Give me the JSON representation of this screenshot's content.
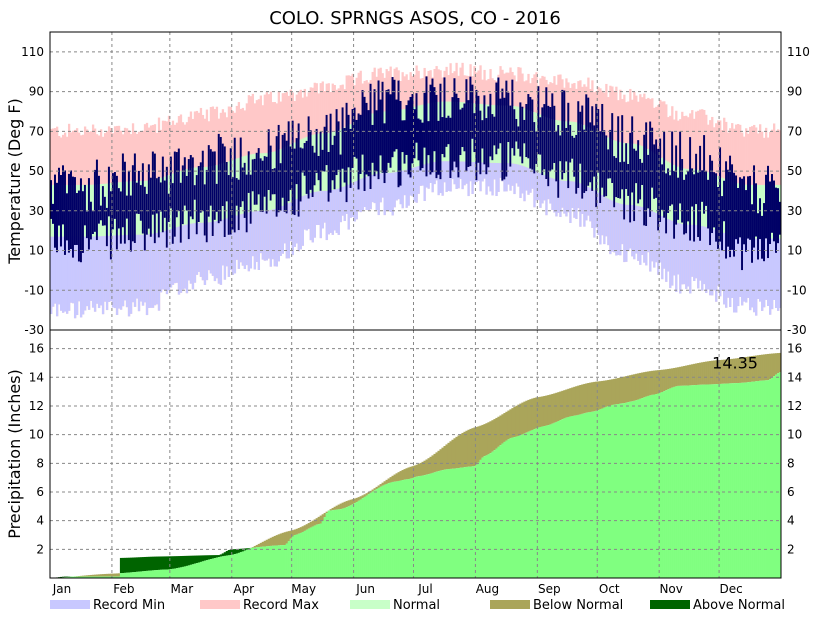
{
  "chart_data": {
    "title": "COLO. SPRNGS ASOS, CO - 2016",
    "months": [
      "Jan",
      "Feb",
      "Mar",
      "Apr",
      "May",
      "Jun",
      "Jul",
      "Aug",
      "Sep",
      "Oct",
      "Nov",
      "Dec"
    ],
    "temperature_panel": {
      "type": "bar",
      "ylabel": "Temperature (Deg F)",
      "ylim": [
        -30,
        120
      ],
      "yticks": [
        -30,
        -10,
        10,
        30,
        50,
        70,
        90,
        110
      ],
      "grid": true,
      "record_max_monthly": [
        70,
        72,
        78,
        86,
        92,
        99,
        101,
        99,
        95,
        88,
        78,
        70
      ],
      "record_min_monthly": [
        -20,
        -18,
        -5,
        5,
        20,
        32,
        42,
        42,
        28,
        8,
        -8,
        -18
      ],
      "normal_high_monthly": [
        43,
        45,
        52,
        59,
        69,
        80,
        85,
        83,
        75,
        64,
        51,
        43
      ],
      "normal_low_monthly": [
        17,
        18,
        24,
        30,
        40,
        49,
        55,
        54,
        45,
        33,
        23,
        16
      ],
      "observed_high_monthly": [
        42,
        48,
        55,
        60,
        68,
        85,
        88,
        84,
        80,
        66,
        58,
        40
      ],
      "observed_low_monthly": [
        15,
        18,
        25,
        30,
        42,
        52,
        57,
        55,
        47,
        35,
        25,
        10
      ]
    },
    "precipitation_panel": {
      "type": "area",
      "ylabel": "Precipitation (Inches)",
      "ylim": [
        0,
        17.3
      ],
      "yticks": [
        2,
        4,
        6,
        8,
        10,
        12,
        14,
        16
      ],
      "grid": true,
      "annotation": "14.35",
      "observed_cumulative": [
        [
          1,
          0
        ],
        [
          8,
          0.1
        ],
        [
          35,
          0.1
        ],
        [
          36,
          1.4
        ],
        [
          55,
          1.5
        ],
        [
          85,
          1.6
        ],
        [
          91,
          2.0
        ],
        [
          118,
          2.3
        ],
        [
          123,
          3.0
        ],
        [
          136,
          3.8
        ],
        [
          140,
          4.7
        ],
        [
          146,
          4.8
        ],
        [
          172,
          6.7
        ],
        [
          180,
          6.9
        ],
        [
          185,
          7.1
        ],
        [
          200,
          7.6
        ],
        [
          213,
          7.8
        ],
        [
          218,
          8.5
        ],
        [
          232,
          9.8
        ],
        [
          248,
          10.6
        ],
        [
          262,
          11.3
        ],
        [
          272,
          11.6
        ],
        [
          283,
          12.1
        ],
        [
          288,
          12.2
        ],
        [
          291,
          12.3
        ],
        [
          303,
          12.8
        ],
        [
          315,
          13.4
        ],
        [
          330,
          13.5
        ],
        [
          345,
          13.6
        ],
        [
          360,
          13.8
        ],
        [
          366,
          14.35
        ]
      ],
      "normal_cumulative": [
        [
          1,
          0
        ],
        [
          31,
          0.3
        ],
        [
          60,
          0.6
        ],
        [
          91,
          1.6
        ],
        [
          121,
          3.3
        ],
        [
          152,
          5.5
        ],
        [
          182,
          7.8
        ],
        [
          213,
          10.5
        ],
        [
          244,
          12.6
        ],
        [
          274,
          13.7
        ],
        [
          305,
          14.5
        ],
        [
          335,
          15.2
        ],
        [
          366,
          15.7
        ]
      ]
    },
    "legend": [
      {
        "label": "Record Min",
        "color": "#c8c8ff"
      },
      {
        "label": "Record Max",
        "color": "#ffc8c8"
      },
      {
        "label": "Normal",
        "color": "#c8ffc8"
      },
      {
        "label": "Below Normal",
        "color": "#aaa55a"
      },
      {
        "label": "Above Normal",
        "color": "#006400"
      }
    ],
    "colors": {
      "record_min": "#c8c8ff",
      "record_max": "#ffc8c8",
      "normal": "#c8ffc8",
      "observed": "#000066",
      "observed_precip": "#80ff80",
      "below_normal": "#aaa55a",
      "above_normal": "#006400"
    }
  }
}
